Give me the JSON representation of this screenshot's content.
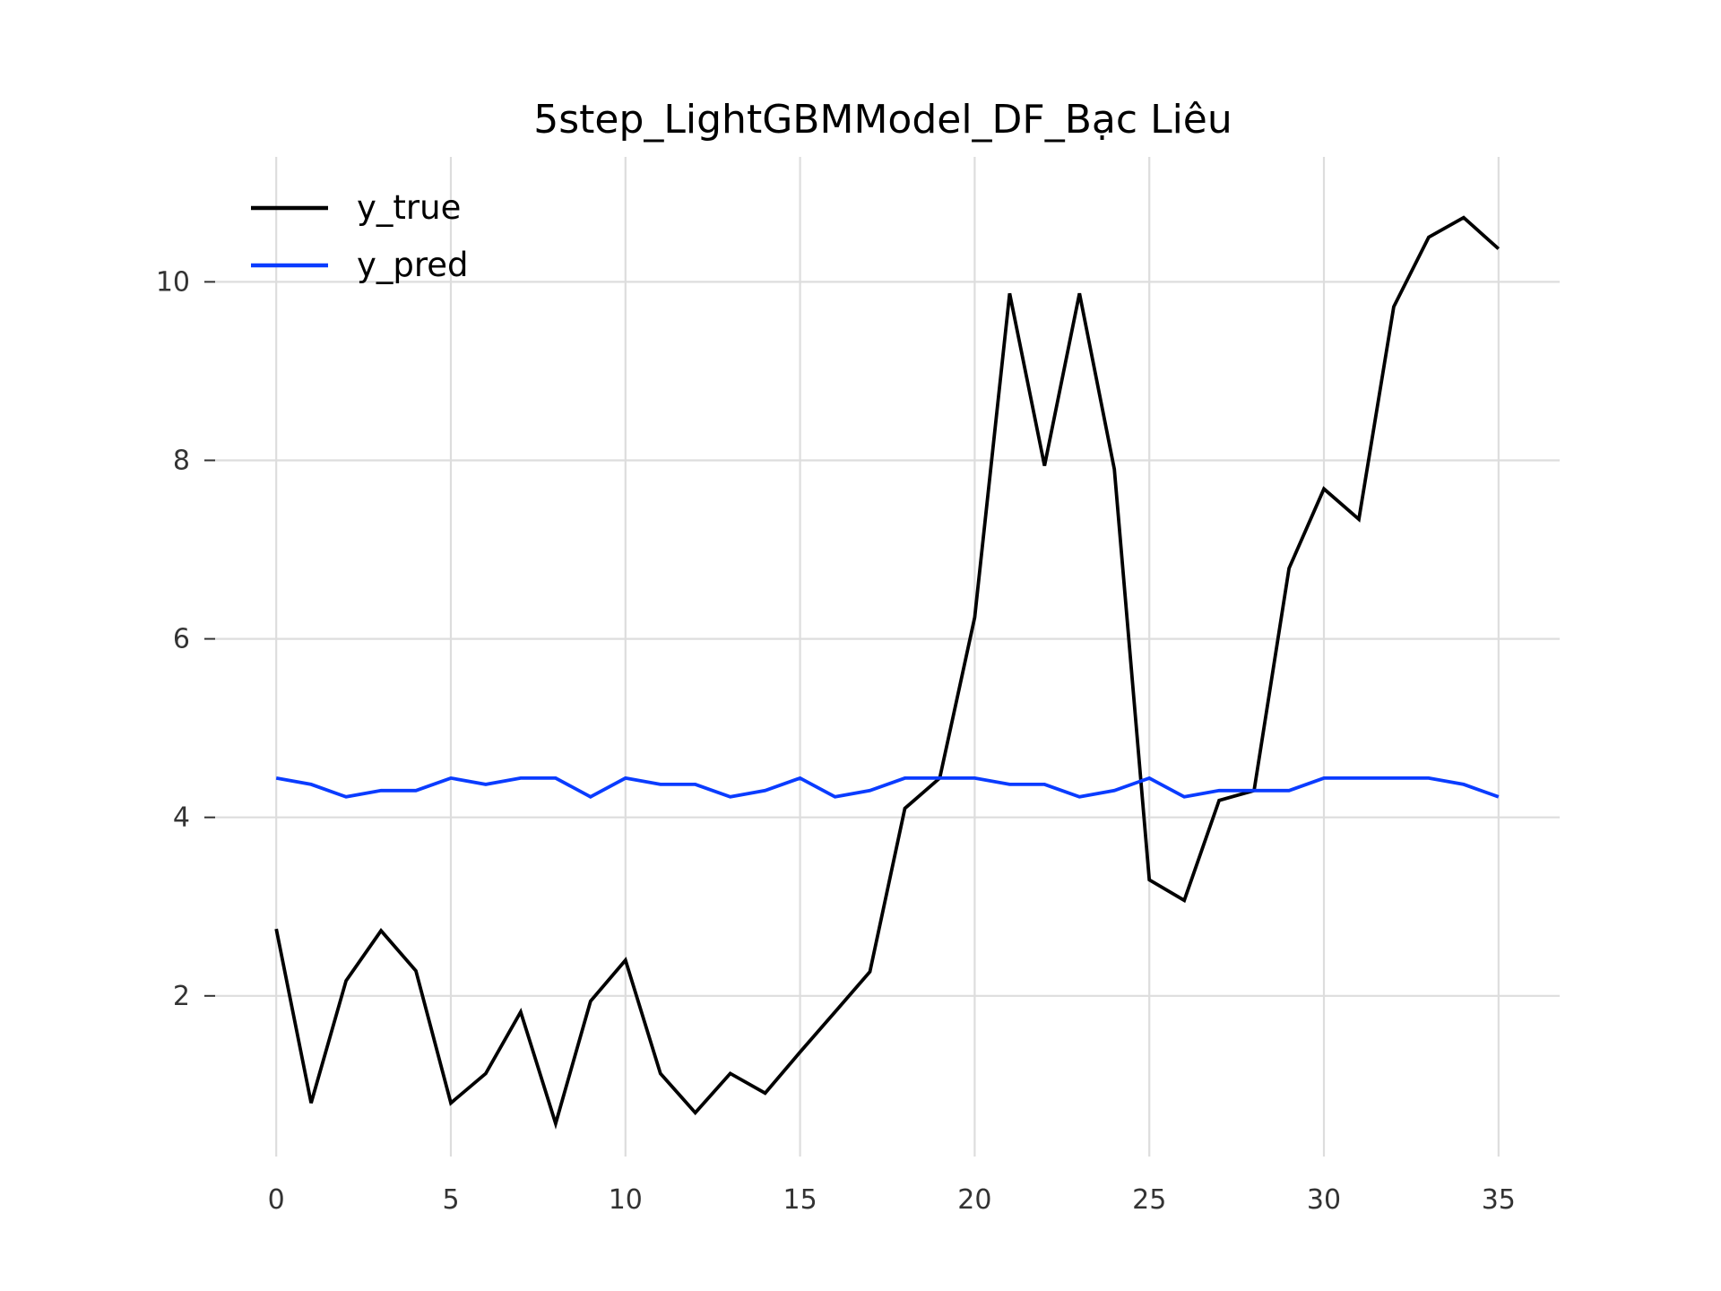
{
  "chart_data": {
    "type": "line",
    "title": "5step_LightGBMModel_DF_Bạc Liêu",
    "xlabel": "",
    "ylabel": "",
    "x": [
      0,
      1,
      2,
      3,
      4,
      5,
      6,
      7,
      8,
      9,
      10,
      11,
      12,
      13,
      14,
      15,
      16,
      17,
      18,
      19,
      20,
      21,
      22,
      23,
      24,
      25,
      26,
      27,
      28,
      29,
      30,
      31,
      32,
      33,
      34,
      35
    ],
    "xlim": [
      -1.75,
      36.75
    ],
    "ylim": [
      0.2,
      11.4
    ],
    "x_ticks": [
      0,
      5,
      10,
      15,
      20,
      25,
      30,
      35
    ],
    "y_ticks": [
      2,
      4,
      6,
      8,
      10
    ],
    "grid": true,
    "legend_position": "top-left",
    "series": [
      {
        "name": "y_true",
        "color": "#000000",
        "values": [
          2.75,
          0.8,
          2.17,
          2.73,
          2.28,
          0.8,
          1.13,
          1.82,
          0.57,
          1.94,
          2.4,
          1.13,
          0.69,
          1.13,
          0.91,
          1.37,
          1.82,
          2.27,
          4.1,
          4.44,
          6.24,
          9.87,
          7.94,
          9.87,
          7.9,
          3.3,
          3.07,
          4.19,
          4.3,
          6.79,
          7.68,
          7.34,
          9.72,
          10.5,
          10.72,
          10.37
        ]
      },
      {
        "name": "y_pred",
        "color": "#0a3cff",
        "values": [
          4.44,
          4.37,
          4.23,
          4.3,
          4.3,
          4.44,
          4.37,
          4.44,
          4.44,
          4.23,
          4.44,
          4.37,
          4.37,
          4.23,
          4.3,
          4.44,
          4.23,
          4.3,
          4.44,
          4.44,
          4.44,
          4.37,
          4.37,
          4.23,
          4.3,
          4.44,
          4.23,
          4.3,
          4.3,
          4.3,
          4.44,
          4.44,
          4.44,
          4.44,
          4.37,
          4.23
        ]
      }
    ]
  }
}
